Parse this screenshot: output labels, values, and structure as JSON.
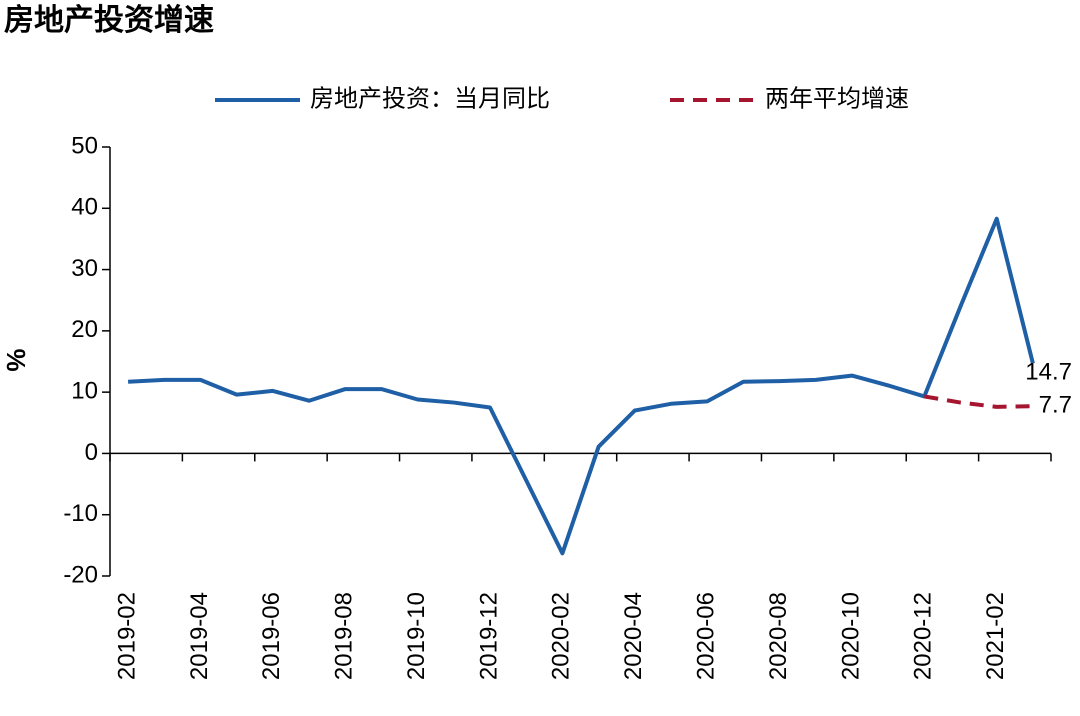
{
  "chart_data": {
    "type": "line",
    "title": "房地产投资增速",
    "y_label": "%",
    "categories": [
      "2019-02",
      null,
      "2019-04",
      null,
      "2019-06",
      null,
      "2019-08",
      null,
      "2019-10",
      null,
      "2019-12",
      null,
      "2020-02",
      null,
      "2020-04",
      null,
      "2020-06",
      null,
      "2020-08",
      null,
      "2020-10",
      null,
      "2020-12",
      null,
      "2021-02",
      null
    ],
    "series": [
      {
        "name": "房地产投资：当月同比",
        "color": "#1f5fa6",
        "dash": false,
        "values": [
          11.7,
          12.0,
          12.0,
          9.6,
          10.2,
          8.6,
          10.5,
          10.5,
          8.8,
          8.3,
          7.5,
          -4.4,
          -16.3,
          1.1,
          7.0,
          8.1,
          8.5,
          11.7,
          11.8,
          12.0,
          12.7,
          11.1,
          9.3,
          24.0,
          38.3,
          14.7
        ],
        "labeled_index": 25
      },
      {
        "name": "两年平均增速",
        "color": "#a5152f",
        "dash": true,
        "values": [
          null,
          null,
          null,
          null,
          null,
          null,
          null,
          null,
          null,
          null,
          null,
          null,
          null,
          null,
          null,
          null,
          null,
          null,
          null,
          null,
          null,
          null,
          9.3,
          8.3,
          7.6,
          7.7
        ],
        "labeled_index": 25
      }
    ],
    "ylim": [
      -20,
      50
    ],
    "yticks": [
      -20,
      -10,
      0,
      10,
      20,
      30,
      40,
      50
    ],
    "legend": "top"
  }
}
